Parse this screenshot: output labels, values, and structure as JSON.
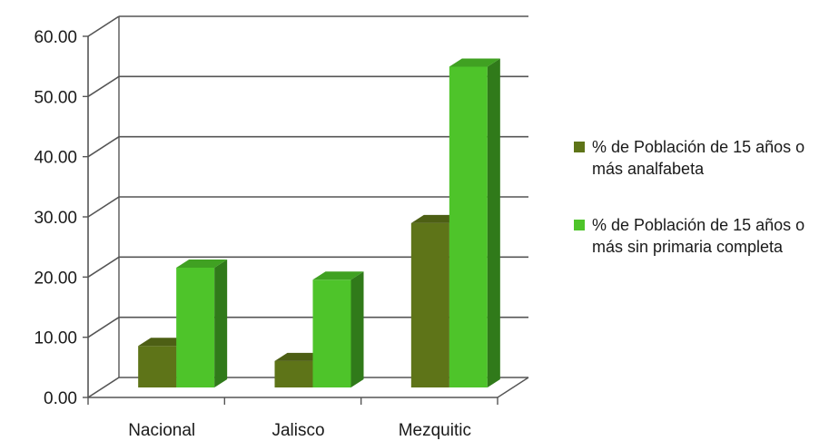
{
  "chart_data": {
    "type": "bar",
    "categories": [
      "Nacional",
      "Jalisco",
      "Mezquitic"
    ],
    "series": [
      {
        "name": "% de Población de 15 años o más analfabeta",
        "values": [
          6.9,
          4.4,
          27.3
        ],
        "color": "#5e7418"
      },
      {
        "name": "%  de Población de 15 años o más sin primaria completa",
        "values": [
          19.9,
          17.9,
          53.3
        ],
        "color": "#4ec42a"
      }
    ],
    "yticks": [
      "0.00",
      "10.00",
      "20.00",
      "30.00",
      "40.00",
      "50.00",
      "60.00"
    ],
    "ylim": [
      0,
      60
    ],
    "grid": true,
    "legend_position": "right",
    "style": "3d-clustered-column",
    "title": "",
    "xlabel": "",
    "ylabel": ""
  }
}
